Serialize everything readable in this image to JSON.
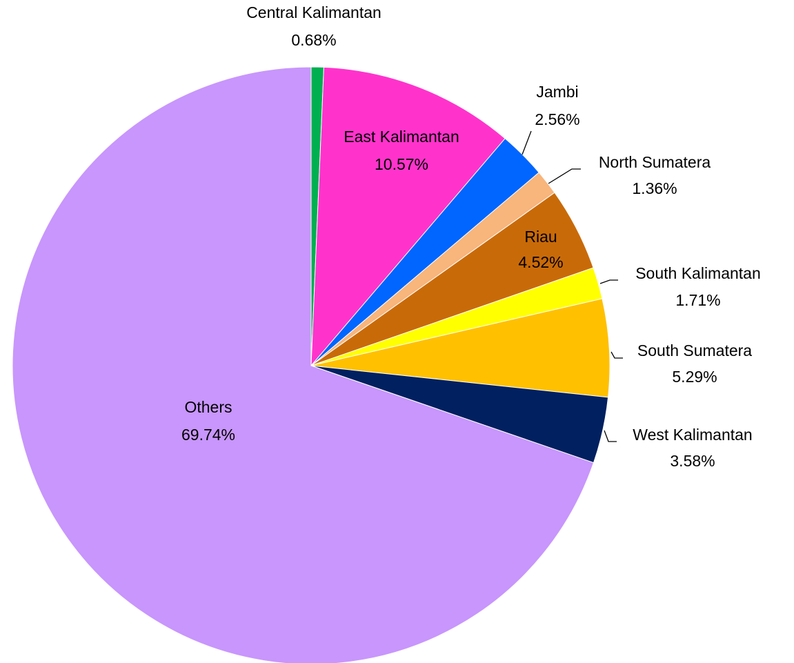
{
  "chart_data": {
    "type": "pie",
    "categories": [
      "Central Kalimantan",
      "East Kalimantan",
      "Jambi",
      "North Sumatera",
      "Riau",
      "South Kalimantan",
      "South Sumatera",
      "West Kalimantan",
      "Others"
    ],
    "values": [
      0.68,
      10.57,
      2.56,
      1.36,
      4.52,
      1.71,
      5.29,
      3.58,
      69.74
    ],
    "value_labels": [
      "0.68%",
      "10.57%",
      "2.56%",
      "1.36%",
      "4.52%",
      "1.71%",
      "5.29%",
      "3.58%",
      "69.74%"
    ],
    "colors": [
      "#00b050",
      "#ff33cc",
      "#0066ff",
      "#f8b57c",
      "#c96a08",
      "#ffff00",
      "#ffc000",
      "#002060",
      "#c896fc"
    ]
  }
}
